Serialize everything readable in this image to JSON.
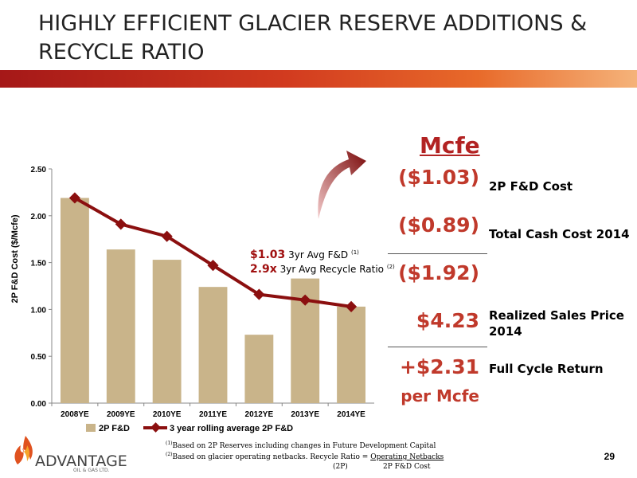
{
  "title": "HIGHLY EFFICIENT GLACIER RESERVE ADDITIONS & RECYCLE RATIO",
  "page_number": "29",
  "colors": {
    "bar": "#c9b48a",
    "line": "#8b0f0f",
    "accent_red": "#c0392b"
  },
  "chart_data": {
    "type": "bar",
    "categories": [
      "2008YE",
      "2009YE",
      "2010YE",
      "2011YE",
      "2012YE",
      "2013YE",
      "2014YE"
    ],
    "series": [
      {
        "name": "2P F&D",
        "type": "bar",
        "values": [
          2.19,
          1.64,
          1.53,
          1.24,
          0.73,
          1.33,
          1.03
        ]
      },
      {
        "name": "3 year rolling average 2P F&D",
        "type": "line",
        "values": [
          2.19,
          1.91,
          1.78,
          1.47,
          1.16,
          1.1,
          1.03
        ]
      }
    ],
    "ylabel": "2P F&D Cost ($/Mcfe)",
    "ylim": [
      0,
      2.5
    ],
    "yticks": [
      "0.00",
      "0.50",
      "1.00",
      "1.50",
      "2.00",
      "2.50"
    ],
    "legend_position": "bottom",
    "grid": false
  },
  "annotation": {
    "line1_value": "$1.03",
    "line1_text": "3yr Avg F&D",
    "line1_sup": "(1)",
    "line2_value": "2.9x",
    "line2_text": "3yr Avg Recycle Ratio",
    "line2_sup": "(2)"
  },
  "summary": {
    "header": "Mcfe",
    "rows": [
      {
        "value": "($1.03)",
        "label": "2P F&D Cost"
      },
      {
        "value": "($0.89)",
        "label": "Total Cash Cost 2014"
      },
      {
        "value": "($1.92)",
        "label": ""
      },
      {
        "value": "$4.23",
        "label": "Realized Sales Price 2014"
      },
      {
        "value": "+$2.31",
        "label": "Full Cycle Return"
      }
    ],
    "per_mcfe": "per Mcfe"
  },
  "footnotes": {
    "f1_sup": "(1)",
    "f1": "Based on 2P Reserves including changes in Future Development Capital",
    "f2_sup": "(2)",
    "f2_pre": "Based on glacier operating netbacks. Recycle Ratio = ",
    "f2_link": "Operating Netbacks",
    "f2_denom_left": "(2P)",
    "f2_denom_right": "2P F&D Cost"
  },
  "logo": {
    "name": "ADVANTAGE",
    "sub": "OIL & GAS LTD."
  }
}
